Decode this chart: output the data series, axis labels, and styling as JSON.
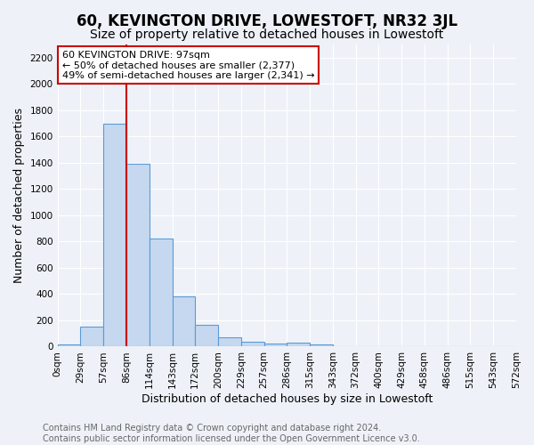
{
  "title": "60, KEVINGTON DRIVE, LOWESTOFT, NR32 3JL",
  "subtitle": "Size of property relative to detached houses in Lowestoft",
  "xlabel": "Distribution of detached houses by size in Lowestoft",
  "ylabel": "Number of detached properties",
  "bar_values": [
    15,
    150,
    1700,
    1390,
    820,
    380,
    165,
    70,
    35,
    25,
    30,
    15,
    0,
    0,
    0,
    0,
    0,
    0,
    0,
    0
  ],
  "bar_labels": [
    "0sqm",
    "29sqm",
    "57sqm",
    "86sqm",
    "114sqm",
    "143sqm",
    "172sqm",
    "200sqm",
    "229sqm",
    "257sqm",
    "286sqm",
    "315sqm",
    "343sqm",
    "372sqm",
    "400sqm",
    "429sqm",
    "458sqm",
    "486sqm",
    "515sqm",
    "543sqm",
    "572sqm"
  ],
  "bar_color": "#c5d8f0",
  "bar_edge_color": "#5b9bd5",
  "vline_x": 3.0,
  "vline_color": "#cc0000",
  "annotation_text": "60 KEVINGTON DRIVE: 97sqm\n← 50% of detached houses are smaller (2,377)\n49% of semi-detached houses are larger (2,341) →",
  "annotation_box_color": "#ffffff",
  "annotation_box_edge": "#cc0000",
  "ylim": [
    0,
    2300
  ],
  "yticks": [
    0,
    200,
    400,
    600,
    800,
    1000,
    1200,
    1400,
    1600,
    1800,
    2000,
    2200
  ],
  "background_color": "#eef2f8",
  "grid_color": "#ffffff",
  "footer_text": "Contains HM Land Registry data © Crown copyright and database right 2024.\nContains public sector information licensed under the Open Government Licence v3.0.",
  "title_fontsize": 12,
  "subtitle_fontsize": 10,
  "xlabel_fontsize": 9,
  "ylabel_fontsize": 9,
  "tick_fontsize": 7.5,
  "annotation_fontsize": 8,
  "footer_fontsize": 7
}
